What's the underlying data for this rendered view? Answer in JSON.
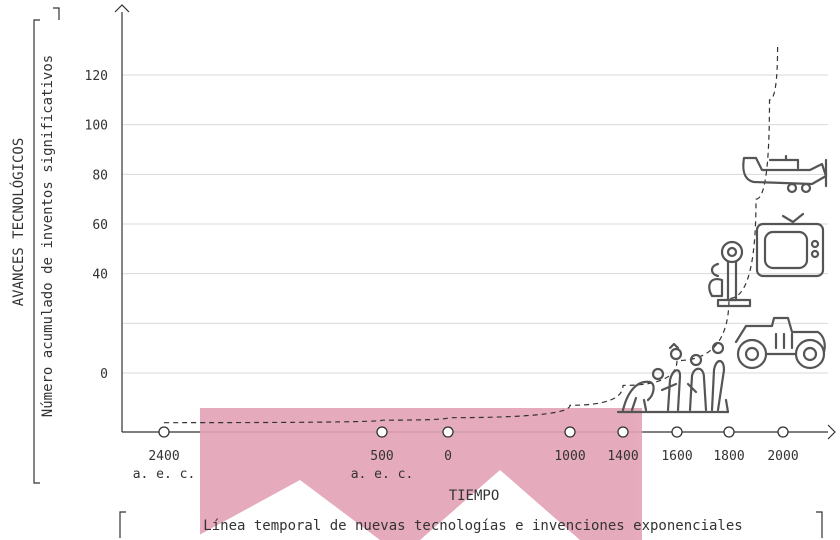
{
  "chart_data": {
    "type": "line",
    "ylabel": "AVANCES TECNOLÓGICOS",
    "ylabel_sub": "Número acumulado de inventos significativos",
    "xlabel": "TIEMPO",
    "caption": "Línea temporal de nuevas tecnologías e invenciones exponenciales",
    "y_ticks": [
      0,
      20,
      40,
      60,
      80,
      100,
      120
    ],
    "y_tick_labels": [
      "0",
      "",
      "40",
      "60",
      "80",
      "100",
      "120"
    ],
    "x_ticks": [
      {
        "value": -2400,
        "label": "2400",
        "sub": "a. e. c."
      },
      {
        "value": -500,
        "label": "500",
        "sub": "a. e. c."
      },
      {
        "value": 0,
        "label": "0",
        "sub": ""
      },
      {
        "value": 1000,
        "label": "1000",
        "sub": ""
      },
      {
        "value": 1400,
        "label": "1400",
        "sub": ""
      },
      {
        "value": 1600,
        "label": "1600",
        "sub": ""
      },
      {
        "value": 1800,
        "label": "1800",
        "sub": ""
      },
      {
        "value": 2000,
        "label": "2000",
        "sub": ""
      }
    ],
    "series": [
      {
        "style": "dashed",
        "points": [
          [
            -2400,
            -20
          ],
          [
            -500,
            -19
          ],
          [
            0,
            -18
          ],
          [
            1000,
            -13
          ],
          [
            1400,
            -5
          ],
          [
            1600,
            5
          ],
          [
            1800,
            30
          ],
          [
            1900,
            70
          ],
          [
            1950,
            110
          ],
          [
            1980,
            132
          ]
        ]
      }
    ],
    "icons": [
      "evolution-icon",
      "gramophone-icon",
      "television-icon",
      "airplane-icon",
      "car-icon"
    ],
    "colors": {
      "axis": "#333333",
      "grid": "#d9d9d9",
      "curve": "#333333",
      "icon": "#555555",
      "watermark": "#e3a3b6"
    }
  }
}
